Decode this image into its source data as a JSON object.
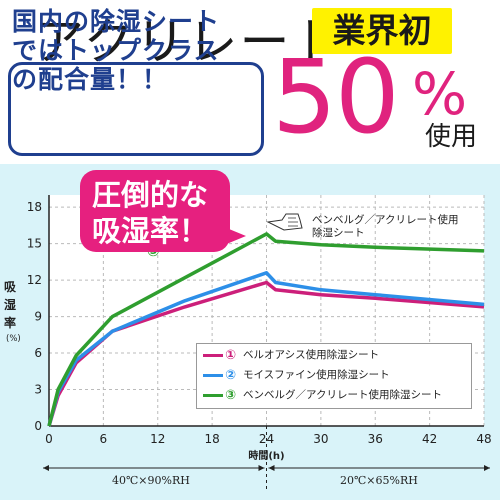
{
  "title": "アクリレート",
  "badge": "業界初",
  "info_box": [
    "国内の除湿シート",
    "ではトップクラス",
    "の配合量！！"
  ],
  "highlight": {
    "number": "50",
    "percent": "%",
    "suffix": "使用"
  },
  "callout": [
    "圧倒的な",
    "吸湿率！"
  ],
  "colors": {
    "pink": "#e0237e",
    "blue": "#2d8fe8",
    "green": "#2f9e2f",
    "navy": "#1f3f8f",
    "yellow": "#fff200",
    "panel": "#d9f3f9"
  },
  "chart_data": {
    "type": "line",
    "ylabel": [
      "吸",
      "湿",
      "率"
    ],
    "yunit": "(%)",
    "xlabel": "時間(h)",
    "xlim": [
      0,
      48
    ],
    "ylim": [
      0,
      19
    ],
    "xticks": [
      0,
      6,
      12,
      18,
      24,
      30,
      36,
      42,
      48
    ],
    "yticks": [
      0,
      3,
      6,
      9,
      12,
      15,
      18
    ],
    "grid": true,
    "legend_position": "bottom-right",
    "series": [
      {
        "num": "①",
        "name": "ベルオアシス使用除湿シート",
        "color": "#cc1f7a",
        "points": [
          [
            0,
            0
          ],
          [
            1,
            2.5
          ],
          [
            3,
            5.2
          ],
          [
            7,
            7.8
          ],
          [
            15,
            9.8
          ],
          [
            24,
            11.8
          ],
          [
            25,
            11.2
          ],
          [
            30,
            10.8
          ],
          [
            36,
            10.5
          ],
          [
            48,
            9.8
          ]
        ]
      },
      {
        "num": "②",
        "name": "モイスファイン使用除湿シート",
        "color": "#2d8fe8",
        "points": [
          [
            0,
            0
          ],
          [
            1,
            2.8
          ],
          [
            3,
            5.4
          ],
          [
            7,
            7.8
          ],
          [
            15,
            10.3
          ],
          [
            24,
            12.6
          ],
          [
            25,
            11.8
          ],
          [
            30,
            11.2
          ],
          [
            36,
            10.8
          ],
          [
            48,
            10.0
          ]
        ]
      },
      {
        "num": "③",
        "name": "ベンベルグ／アクリレート使用除湿シート",
        "color": "#2f9e2f",
        "points": [
          [
            0,
            0
          ],
          [
            1,
            3.0
          ],
          [
            3,
            5.8
          ],
          [
            7,
            9.0
          ],
          [
            15,
            12.2
          ],
          [
            24,
            15.8
          ],
          [
            25,
            15.2
          ],
          [
            30,
            14.9
          ],
          [
            36,
            14.7
          ],
          [
            48,
            14.4
          ]
        ]
      }
    ],
    "annotation": [
      "ベンベルグ／アクリレート使用",
      "除湿シート"
    ],
    "series_marker": "③",
    "phases": [
      "40℃×90%RH",
      "20℃×65%RH"
    ]
  }
}
